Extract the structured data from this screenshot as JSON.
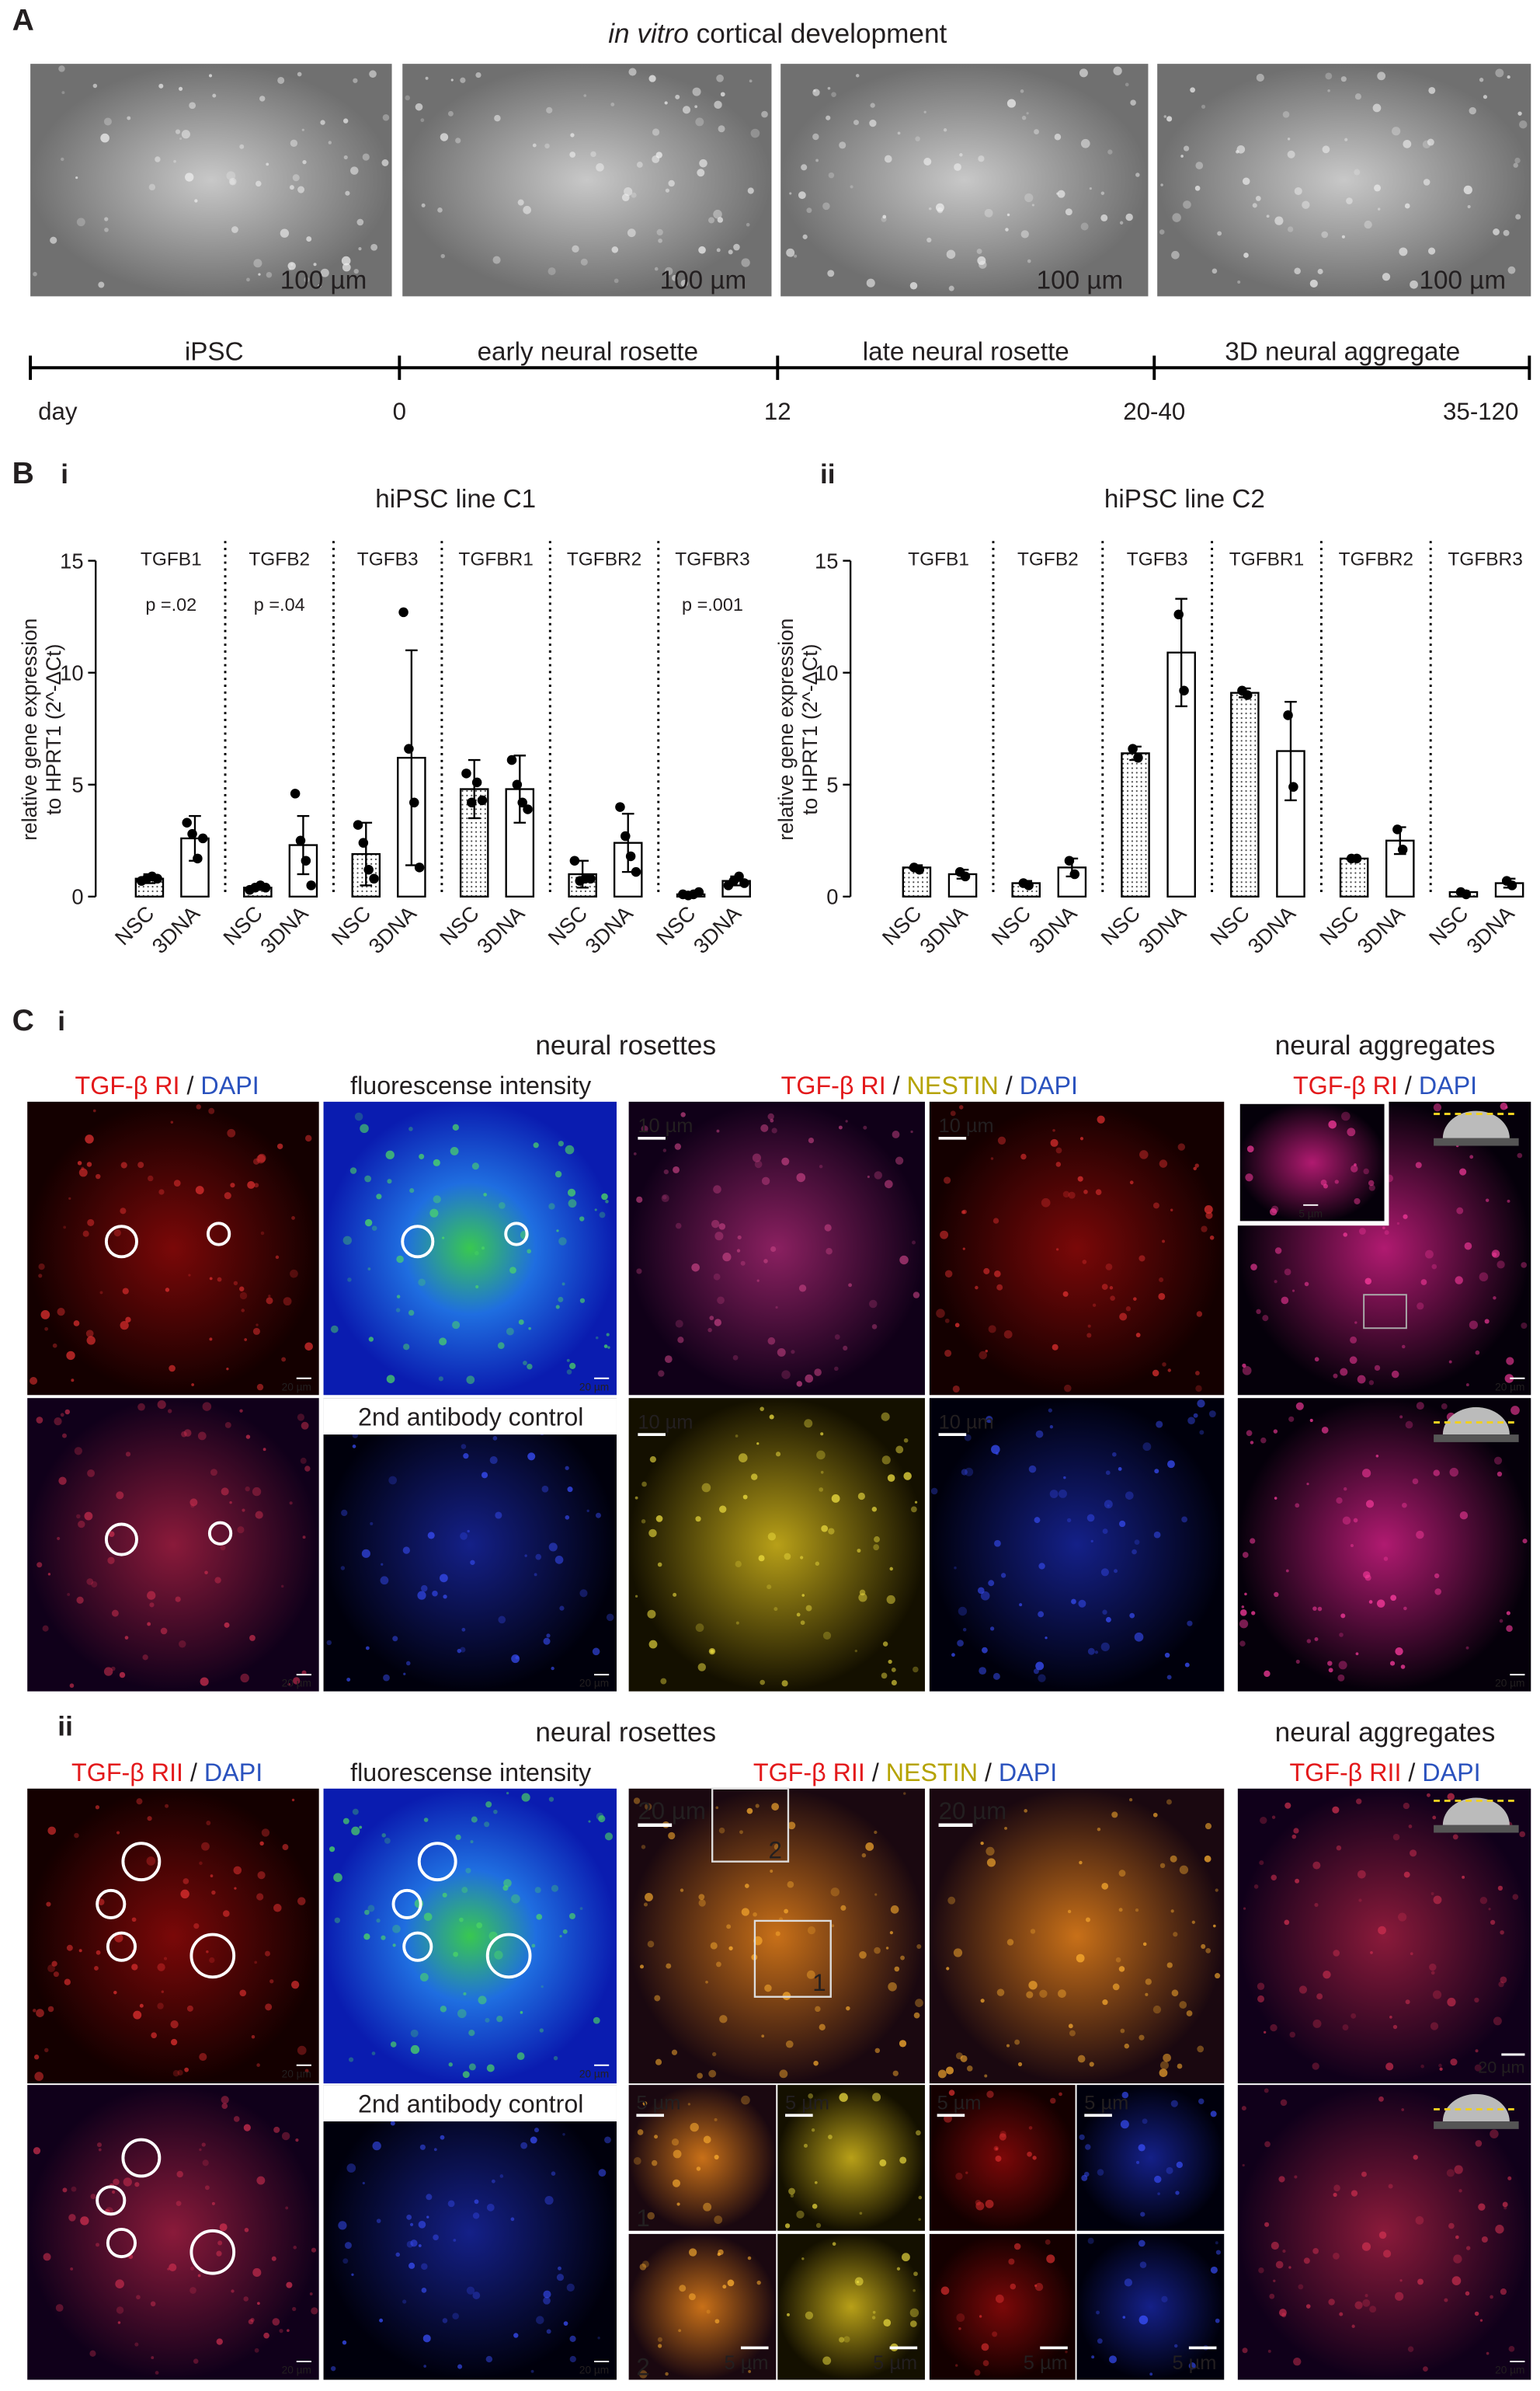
{
  "panel_a": {
    "label": "A",
    "title_italic": "in vitro",
    "title_rest": "cortical development",
    "scale_bars": [
      "100 µm",
      "100 µm",
      "100 µm",
      "100 µm"
    ],
    "stages": [
      "iPSC",
      "early neural rosette",
      "late neural rosette",
      "3D neural aggregate"
    ],
    "timeline": [
      "day",
      "0",
      "12",
      "20-40",
      "35-120"
    ]
  },
  "panel_b": {
    "label": "B"
  },
  "chart_data": [
    {
      "type": "bar",
      "panel": "i",
      "title": "hiPSC line C1",
      "ylabel": [
        "relative gene expression",
        "to HPRT1 (2^-ΔCt)"
      ],
      "categories": [
        "TGFB1",
        "TGFB2",
        "TGFB3",
        "TGFBR1",
        "TGFBR2",
        "TGFBR3"
      ],
      "annotations": [
        "p =.02",
        "p =.04",
        null,
        null,
        null,
        "p =.001"
      ],
      "ylim": [
        0,
        15
      ],
      "yticks": [
        0,
        5,
        10,
        15
      ],
      "series": [
        {
          "name": "NSC",
          "color": "#000000",
          "pattern": "dots",
          "values": [
            0.8,
            0.4,
            1.9,
            4.8,
            1.0,
            0.1
          ],
          "errors": [
            0.2,
            0.1,
            1.4,
            1.3,
            0.6,
            0.1
          ],
          "points": [
            [
              0.7,
              0.8,
              0.9,
              0.8
            ],
            [
              0.3,
              0.4,
              0.5,
              0.4
            ],
            [
              3.2,
              2.4,
              1.2,
              0.8
            ],
            [
              5.5,
              4.2,
              5.1,
              4.3
            ],
            [
              1.6,
              0.7,
              0.8,
              0.8
            ],
            [
              0.1,
              0.05,
              0.1,
              0.2
            ]
          ]
        },
        {
          "name": "3DNA",
          "color": "#000000",
          "pattern": "none",
          "values": [
            2.6,
            2.3,
            6.2,
            4.8,
            2.4,
            0.7
          ],
          "errors": [
            1.0,
            1.3,
            4.8,
            1.5,
            1.3,
            0.2
          ],
          "points": [
            [
              3.3,
              2.8,
              1.7,
              2.6
            ],
            [
              4.6,
              2.5,
              1.6,
              0.5
            ],
            [
              12.7,
              6.6,
              4.2,
              1.3
            ],
            [
              6.1,
              5.0,
              4.2,
              3.9
            ],
            [
              4.0,
              2.7,
              1.8,
              1.1
            ],
            [
              0.5,
              0.7,
              0.9,
              0.6
            ]
          ]
        }
      ]
    },
    {
      "type": "bar",
      "panel": "ii",
      "title": "hiPSC line C2",
      "ylabel": [
        "relative gene expression",
        "to HPRT1 (2^-ΔCt)"
      ],
      "categories": [
        "TGFB1",
        "TGFB2",
        "TGFB3",
        "TGFBR1",
        "TGFBR2",
        "TGFBR3"
      ],
      "annotations": [
        null,
        null,
        null,
        null,
        null,
        null
      ],
      "ylim": [
        0,
        15
      ],
      "yticks": [
        0,
        5,
        10,
        15
      ],
      "series": [
        {
          "name": "NSC",
          "color": "#000000",
          "pattern": "dots",
          "values": [
            1.3,
            0.6,
            6.4,
            9.1,
            1.7,
            0.2
          ],
          "errors": [
            0.1,
            0.1,
            0.3,
            0.2,
            0.1,
            0.05
          ],
          "points": [
            [
              1.3,
              1.2
            ],
            [
              0.6,
              0.5
            ],
            [
              6.6,
              6.2
            ],
            [
              9.2,
              9.0
            ],
            [
              1.7,
              1.7
            ],
            [
              0.2,
              0.1
            ]
          ]
        },
        {
          "name": "3DNA",
          "color": "#000000",
          "pattern": "none",
          "values": [
            1.0,
            1.3,
            10.9,
            6.5,
            2.5,
            0.6
          ],
          "errors": [
            0.2,
            0.4,
            2.4,
            2.2,
            0.6,
            0.2
          ],
          "points": [
            [
              1.1,
              0.9
            ],
            [
              1.6,
              1.0
            ],
            [
              12.6,
              9.2
            ],
            [
              8.1,
              4.9
            ],
            [
              3.0,
              2.1
            ],
            [
              0.7,
              0.5
            ]
          ]
        }
      ]
    }
  ],
  "panel_c": {
    "label": "C",
    "sections": [
      {
        "label": "i",
        "titles": [
          "neural rosettes",
          "neural aggregates"
        ],
        "headers": [
          [
            {
              "text": "TGF-β RI",
              "color": "#e3191b"
            },
            {
              "text": " / ",
              "color": "#231f20"
            },
            {
              "text": "DAPI",
              "color": "#2a52be"
            }
          ],
          [
            {
              "text": "fluorescense intensity",
              "color": "#231f20"
            }
          ],
          [
            {
              "text": "TGF-β RI",
              "color": "#e3191b"
            },
            {
              "text": " / ",
              "color": "#231f20"
            },
            {
              "text": "NESTIN",
              "color": "#b5a300"
            },
            {
              "text": " / ",
              "color": "#231f20"
            },
            {
              "text": "DAPI",
              "color": "#2a52be"
            }
          ],
          [
            {
              "text": "TGF-β RI",
              "color": "#e3191b"
            },
            {
              "text": " / ",
              "color": "#231f20"
            },
            {
              "text": "DAPI",
              "color": "#2a52be"
            }
          ]
        ],
        "tile_labels": [
          "2nd antibody control"
        ],
        "scale_bars": [
          "20 µm",
          "20 µm",
          "10 µm",
          "10 µm",
          "20 µm",
          "5 µm",
          "20 µm",
          "20 µm",
          "10 µm",
          "10 µm",
          "20 µm"
        ]
      },
      {
        "label": "ii",
        "titles": [
          "neural rosettes",
          "neural aggregates"
        ],
        "headers": [
          [
            {
              "text": "TGF-β RII",
              "color": "#e3191b"
            },
            {
              "text": " / ",
              "color": "#231f20"
            },
            {
              "text": "DAPI",
              "color": "#2a52be"
            }
          ],
          [
            {
              "text": "fluorescense intensity",
              "color": "#231f20"
            }
          ],
          [
            {
              "text": "TGF-β RII",
              "color": "#e3191b"
            },
            {
              "text": " / ",
              "color": "#231f20"
            },
            {
              "text": "NESTIN",
              "color": "#b5a300"
            },
            {
              "text": " / ",
              "color": "#231f20"
            },
            {
              "text": "DAPI",
              "color": "#2a52be"
            }
          ],
          [
            {
              "text": "TGF-β RII",
              "color": "#e3191b"
            },
            {
              "text": " / ",
              "color": "#231f20"
            },
            {
              "text": "DAPI",
              "color": "#2a52be"
            }
          ]
        ],
        "tile_labels": [
          "2nd antibody control"
        ],
        "inset_labels": [
          "1",
          "2"
        ],
        "scale_bars": [
          "20 µm",
          "20 µm",
          "20 µm",
          "20 µm",
          "20 µm",
          "20 µm",
          "20 µm",
          "5 µm",
          "5 µm",
          "5 µm",
          "5 µm",
          "5 µm",
          "5 µm",
          "5 µm",
          "5 µm",
          "20 µm"
        ]
      }
    ]
  }
}
